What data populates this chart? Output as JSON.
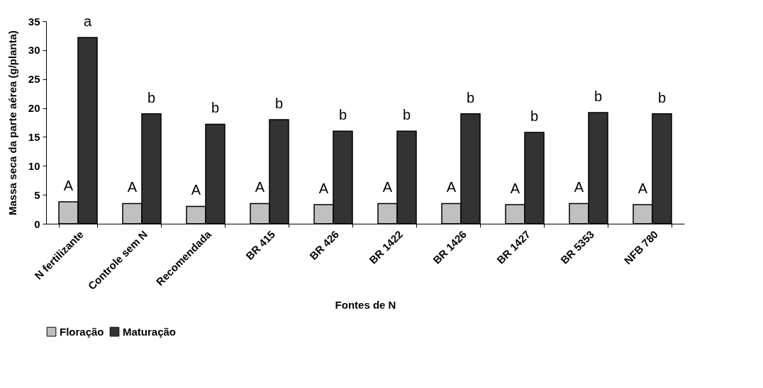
{
  "chart_data": {
    "type": "bar",
    "xlabel": "Fontes de N",
    "ylabel": "Massa seca da parte aérea (g/planta)",
    "categories": [
      "N fertilizante",
      "Controle sem N",
      "Recomendada",
      "BR 415",
      "BR 426",
      "BR 1422",
      "BR 1426",
      "BR 1427",
      "BR 5353",
      "NFB 780"
    ],
    "series": [
      {
        "name": "Floração",
        "color": "#c0c0c0",
        "values": [
          3.8,
          3.5,
          3.0,
          3.5,
          3.3,
          3.5,
          3.5,
          3.3,
          3.5,
          3.3
        ],
        "value_labels": [
          "A",
          "A",
          "A",
          "A",
          "A",
          "A",
          "A",
          "A",
          "A",
          "A"
        ]
      },
      {
        "name": "Maturação",
        "color": "#333333",
        "values": [
          32.2,
          19.0,
          17.2,
          18.0,
          16.0,
          16.0,
          19.0,
          15.8,
          19.2,
          19.0
        ],
        "value_labels": [
          "a",
          "b",
          "b",
          "b",
          "b",
          "b",
          "b",
          "b",
          "b",
          "b"
        ]
      }
    ],
    "ylim": [
      0,
      35
    ],
    "yticks": [
      0,
      5,
      10,
      15,
      20,
      25,
      30,
      35
    ],
    "grid": false,
    "legend": "bottom"
  }
}
